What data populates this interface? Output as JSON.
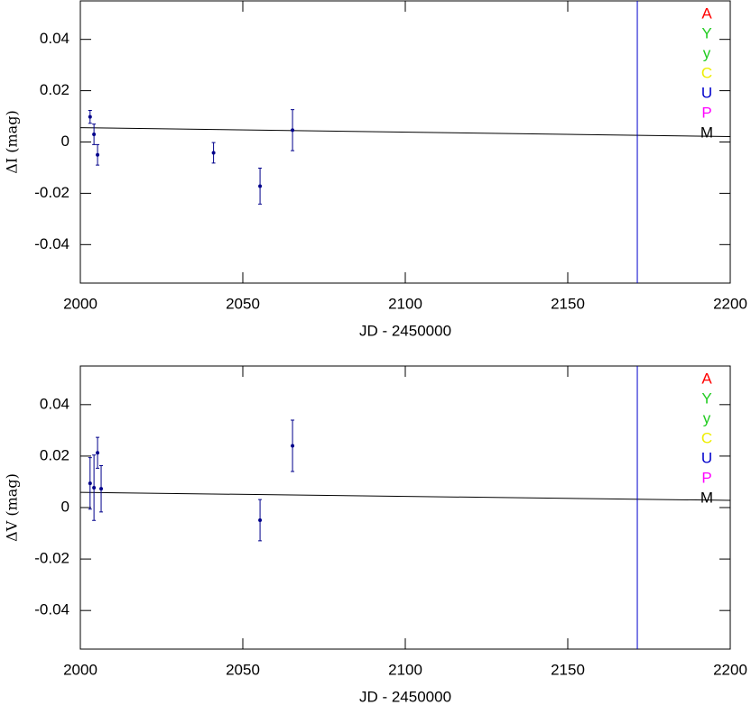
{
  "chart_data": [
    {
      "type": "scatter",
      "xlabel": "JD - 2450000",
      "ylabel": "ΔI (mag)",
      "xlim": [
        2000,
        2200
      ],
      "ylim": [
        -0.055,
        0.055
      ],
      "xticks": [
        2000,
        2050,
        2100,
        2150,
        2200
      ],
      "yticks": [
        -0.04,
        -0.02,
        0,
        0.02,
        0.04
      ],
      "series": [
        {
          "color": "#00008b",
          "x": [
            2003,
            2004.2,
            2005.3,
            2041,
            2055.3,
            2065.3
          ],
          "y": [
            0.0098,
            0.003,
            -0.005,
            -0.0042,
            -0.0172,
            0.0046
          ],
          "yerr": [
            0.0025,
            0.004,
            0.004,
            0.004,
            0.007,
            0.008
          ]
        }
      ],
      "fit": {
        "color": "#000000",
        "x": [
          2000,
          2200
        ],
        "y": [
          0.0056,
          0.0021
        ]
      },
      "vline": {
        "color": "#0000cc",
        "x": 2171.4
      },
      "legend": [
        {
          "label": "A",
          "color": "#ff0000"
        },
        {
          "label": "Y",
          "color": "#22cc22"
        },
        {
          "label": "y",
          "color": "#22cc22"
        },
        {
          "label": "C",
          "color": "#eeee00"
        },
        {
          "label": "U",
          "color": "#0000cc"
        },
        {
          "label": "P",
          "color": "#ff00ff"
        },
        {
          "label": "M",
          "color": "#000000"
        }
      ]
    },
    {
      "type": "scatter",
      "xlabel": "JD - 2450000",
      "ylabel": "ΔV (mag)",
      "xlim": [
        2000,
        2200
      ],
      "ylim": [
        -0.055,
        0.055
      ],
      "xticks": [
        2000,
        2050,
        2100,
        2150,
        2200
      ],
      "yticks": [
        -0.04,
        -0.02,
        0,
        0.02,
        0.04
      ],
      "series": [
        {
          "color": "#00008b",
          "x": [
            2003,
            2004.2,
            2005.3,
            2006.4,
            2055.3,
            2065.3
          ],
          "y": [
            0.0094,
            0.0077,
            0.0213,
            0.0073,
            -0.0049,
            0.024
          ],
          "yerr": [
            0.01,
            0.0127,
            0.006,
            0.009,
            0.008,
            0.01
          ]
        }
      ],
      "fit": {
        "color": "#000000",
        "x": [
          2000,
          2200
        ],
        "y": [
          0.0059,
          0.0028
        ]
      },
      "vline": {
        "color": "#0000cc",
        "x": 2171.4
      },
      "legend": [
        {
          "label": "A",
          "color": "#ff0000"
        },
        {
          "label": "Y",
          "color": "#22cc22"
        },
        {
          "label": "y",
          "color": "#22cc22"
        },
        {
          "label": "C",
          "color": "#eeee00"
        },
        {
          "label": "U",
          "color": "#0000cc"
        },
        {
          "label": "P",
          "color": "#ff00ff"
        },
        {
          "label": "M",
          "color": "#000000"
        }
      ]
    }
  ]
}
